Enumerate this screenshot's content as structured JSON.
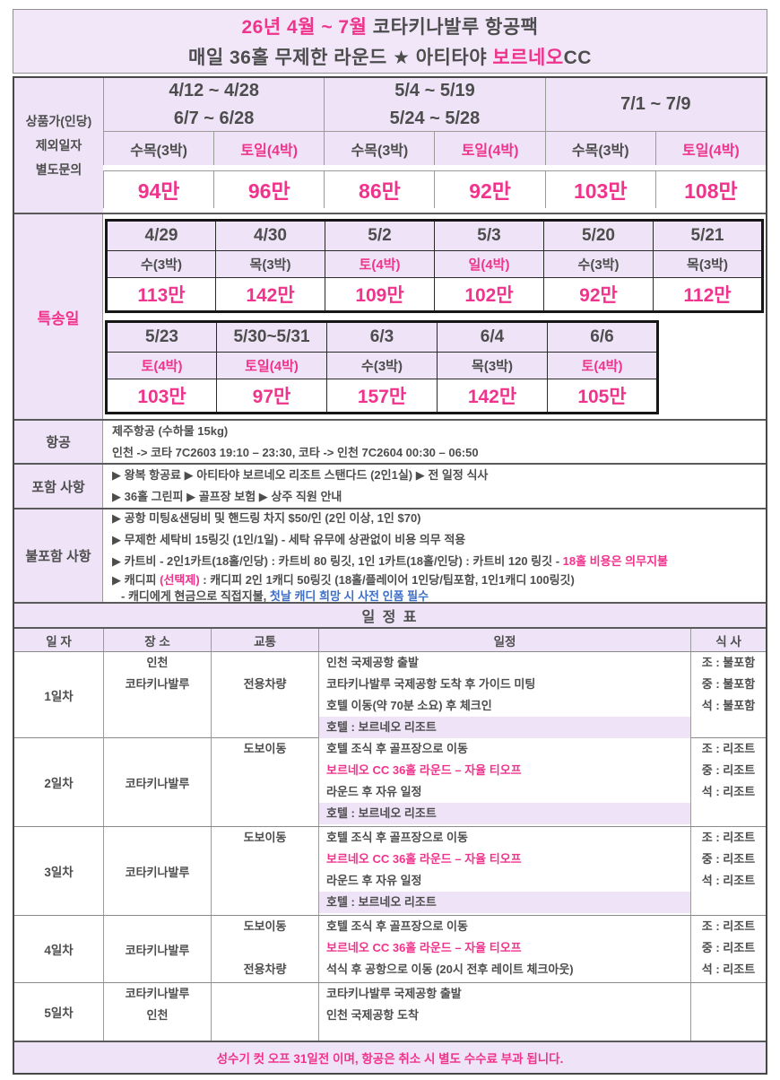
{
  "title": {
    "line1": [
      {
        "t": "26년 4월 ~ 7월"
      },
      {
        "t": " 코타키나발루 항공팩"
      }
    ],
    "line2": [
      {
        "t": "매일 36홀 무제한 라운드 ★ 아티타야 "
      },
      {
        "t": "보르네오"
      },
      {
        "t": "CC"
      }
    ]
  },
  "price_table": {
    "label_lines": [
      "상품가(인당)",
      "제외일자",
      "별도문의"
    ],
    "groups": [
      {
        "dates": [
          "4/12 ~ 4/28",
          "6/7 ~ 6/28"
        ]
      },
      {
        "dates": [
          "5/4 ~ 5/19",
          "5/24 ~ 5/28"
        ]
      },
      {
        "dates": [
          "7/1 ~ 7/9"
        ]
      }
    ],
    "days": [
      {
        "t": "수목(3박)"
      },
      {
        "t": "토일(4박)"
      },
      {
        "t": "수목(3박)"
      },
      {
        "t": "토일(4박)"
      },
      {
        "t": "수목(3박)"
      },
      {
        "t": "토일(4박)"
      }
    ],
    "prices": [
      "94만",
      "96만",
      "86만",
      "92만",
      "103만",
      "108만"
    ]
  },
  "special": {
    "label": "특송일",
    "row1": [
      {
        "date": "4/29",
        "day": "수(3박)",
        "price": "113만"
      },
      {
        "date": "4/30",
        "day": "목(3박)",
        "price": "142만"
      },
      {
        "date": "5/2",
        "day": "토(4박)",
        "price": "109만"
      },
      {
        "date": "5/3",
        "day": "일(4박)",
        "price": "102만"
      },
      {
        "date": "5/20",
        "day": "수(3박)",
        "price": "92만"
      },
      {
        "date": "5/21",
        "day": "목(3박)",
        "price": "112만"
      }
    ],
    "row2": [
      {
        "date": "5/23",
        "day": "토(4박)",
        "price": "103만"
      },
      {
        "date": "5/30~5/31",
        "day": "토일(4박)",
        "price": "97만"
      },
      {
        "date": "6/3",
        "day": "수(3박)",
        "price": "157만"
      },
      {
        "date": "6/4",
        "day": "목(3박)",
        "price": "142만"
      },
      {
        "date": "6/6",
        "day": "토(4박)",
        "price": "105만"
      }
    ]
  },
  "flight": {
    "label": "항공",
    "lines": [
      "제주항공 (수하물 15kg)",
      "인천 -> 코타 7C2603 19:10 – 23:30, 코타 -> 인천 7C2604 00:30 – 06:50"
    ]
  },
  "included": {
    "label": "포함 사항",
    "lines": [
      "▶ 왕복 항공료 ▶ 아티타야 보르네오 리조트 스탠다드 (2인1실) ▶ 전 일정 식사",
      "▶ 36홀 그린피 ▶ 골프장 보험 ▶ 상주 직원 안내"
    ]
  },
  "excluded": {
    "label": "불포함 사항",
    "line1": [
      {
        "t": "▶ 공항 미팅&샌딩비 및 핸드링 차지 $50/인 (2인 이상, 1인 $70)"
      }
    ],
    "line2": [
      {
        "t": "▶ 무제한 세탁비 15링깃 (1인/1일) - 세탁 유무에 상관없이 비용 의무 적용"
      }
    ],
    "line3": [
      {
        "t": "▶ 카트비 - 2인1카트(18홀/인당) : 카트비 80 링깃, 1인 1카트(18홀/인당) : 카트비 120 링깃 - "
      },
      {
        "t": "18홀 비용은 의무지불"
      }
    ],
    "line4": [
      {
        "t": "▶ 캐디피 "
      },
      {
        "t": "(선택제)"
      },
      {
        "t": " : 캐디피 2인 1캐디 50링깃 (18홀/플레이어 1인당/팁포함, 1인1캐디 100링깃)"
      }
    ],
    "line5": [
      {
        "t": "- 캐디에게 현금으로 직접지불, "
      },
      {
        "t": "첫날 캐디 희망 시 사전 인폼 필수"
      }
    ]
  },
  "itinerary": {
    "title": "일 정 표",
    "headers": [
      "일 자",
      "장 소",
      "교통",
      "일정",
      "식 사"
    ],
    "days": [
      {
        "label": "1일차",
        "places": [
          "인천",
          "코타키나발루"
        ],
        "transport": [
          "",
          "전용차량"
        ],
        "schedule": [
          {
            "t": "인천 국제공항 출발"
          },
          {
            "t": "코타키나발루 국제공항 도착 후 가이드 미팅"
          },
          {
            "t": "호텔 이동(약 70분 소요) 후 체크인"
          },
          {
            "t": "호텔 : 보르네오 리조트"
          }
        ],
        "meals": [
          "조 : 불포함",
          "중 : 불포함",
          "석 : 불포함"
        ]
      },
      {
        "label": "2일차",
        "place": "코타키나발루",
        "transport": [
          "도보이동"
        ],
        "schedule": [
          {
            "t": "호텔 조식 후 골프장으로 이동"
          },
          {
            "t": "보르네오 CC 36홀 라운드 – 자율 티오프"
          },
          {
            "t": "라운드 후 자유 일정"
          },
          {
            "t": "호텔 : 보르네오 리조트"
          }
        ],
        "meals": [
          "조 : 리조트",
          "중 : 리조트",
          "석 : 리조트"
        ]
      },
      {
        "label": "3일차",
        "place": "코타키나발루",
        "transport": [
          "도보이동"
        ],
        "schedule": [
          {
            "t": "호텔 조식 후 골프장으로 이동"
          },
          {
            "t": "보르네오 CC 36홀 라운드 – 자율 티오프"
          },
          {
            "t": "라운드 후 자유 일정"
          },
          {
            "t": "호텔 : 보르네오 리조트"
          }
        ],
        "meals": [
          "조 : 리조트",
          "중 : 리조트",
          "석 : 리조트"
        ]
      },
      {
        "label": "4일차",
        "place": "코타키나발루",
        "transport": [
          "도보이동",
          "",
          "전용차량"
        ],
        "schedule": [
          {
            "t": "호텔 조식 후 골프장으로 이동"
          },
          {
            "t": "보르네오 CC 36홀 라운드 – 자율 티오프"
          },
          {
            "t": "석식 후 공항으로 이동 (20시 전후 레이트 체크아웃)"
          }
        ],
        "meals": [
          "조 : 리조트",
          "중 : 리조트",
          "석 : 리조트"
        ]
      },
      {
        "label": "5일차",
        "places": [
          "코타키나발루",
          "인천"
        ],
        "schedule": [
          {
            "t": "코타키나발루 국제공항 출발"
          },
          {
            "t": "인천 국제공항 도착"
          }
        ],
        "meals": []
      }
    ]
  },
  "footer": {
    "text": "성수기 컷 오프 31일전 이며, 항공은 취소 시 별도 수수료 부과 됩니다."
  },
  "colors": {
    "accent_pink": "#f0338c",
    "lavender": "#efe4f7",
    "ink": "#4d4d4d",
    "link_blue": "#3e6fc6"
  }
}
